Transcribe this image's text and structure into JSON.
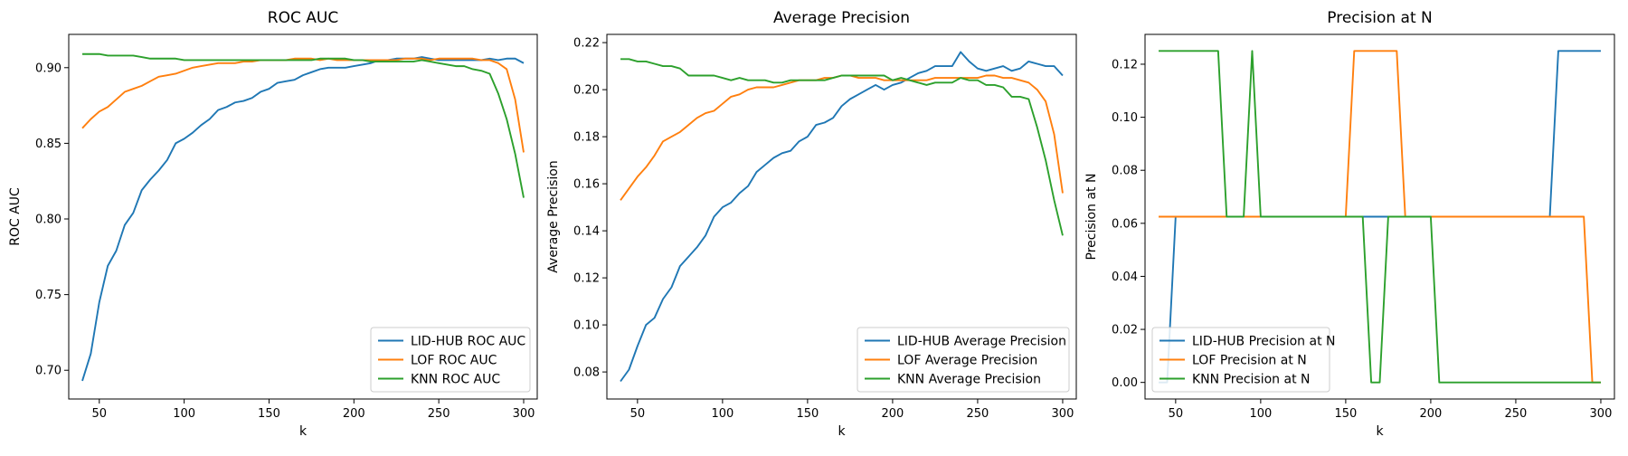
{
  "chart_data": [
    {
      "type": "line",
      "title": "ROC AUC",
      "xlabel": "k",
      "ylabel": "ROC AUC",
      "xlim": [
        32,
        308
      ],
      "ylim": [
        0.681,
        0.922
      ],
      "xticks": [
        50,
        100,
        150,
        200,
        250,
        300
      ],
      "yticks": [
        0.7,
        0.75,
        0.8,
        0.85,
        0.9
      ],
      "ytick_labels": [
        "0.70",
        "0.75",
        "0.80",
        "0.85",
        "0.90"
      ],
      "legend_position": "lower-right",
      "grid": false,
      "x": [
        40,
        45,
        50,
        55,
        60,
        65,
        70,
        75,
        80,
        85,
        90,
        95,
        100,
        105,
        110,
        115,
        120,
        125,
        130,
        135,
        140,
        145,
        150,
        155,
        160,
        165,
        170,
        175,
        180,
        185,
        190,
        195,
        200,
        205,
        210,
        215,
        220,
        225,
        230,
        235,
        240,
        245,
        250,
        255,
        260,
        265,
        270,
        275,
        280,
        285,
        290,
        295,
        300
      ],
      "series": [
        {
          "name": "LID-HUB ROC AUC",
          "color": "#1f77b4",
          "values": [
            0.693,
            0.711,
            0.745,
            0.769,
            0.779,
            0.796,
            0.804,
            0.819,
            0.826,
            0.832,
            0.839,
            0.85,
            0.853,
            0.857,
            0.862,
            0.866,
            0.872,
            0.874,
            0.877,
            0.878,
            0.88,
            0.884,
            0.886,
            0.89,
            0.891,
            0.892,
            0.895,
            0.897,
            0.899,
            0.9,
            0.9,
            0.9,
            0.901,
            0.902,
            0.903,
            0.905,
            0.905,
            0.906,
            0.906,
            0.906,
            0.907,
            0.906,
            0.905,
            0.905,
            0.905,
            0.905,
            0.905,
            0.905,
            0.906,
            0.905,
            0.906,
            0.906,
            0.903
          ]
        },
        {
          "name": "LOF ROC AUC",
          "color": "#ff7f0e",
          "values": [
            0.86,
            0.866,
            0.871,
            0.874,
            0.879,
            0.884,
            0.886,
            0.888,
            0.891,
            0.894,
            0.895,
            0.896,
            0.898,
            0.9,
            0.901,
            0.902,
            0.903,
            0.903,
            0.903,
            0.904,
            0.904,
            0.905,
            0.905,
            0.905,
            0.905,
            0.906,
            0.906,
            0.906,
            0.905,
            0.906,
            0.905,
            0.905,
            0.905,
            0.905,
            0.905,
            0.905,
            0.905,
            0.905,
            0.906,
            0.906,
            0.906,
            0.905,
            0.906,
            0.906,
            0.906,
            0.906,
            0.906,
            0.905,
            0.905,
            0.903,
            0.899,
            0.879,
            0.844
          ]
        },
        {
          "name": "KNN ROC AUC",
          "color": "#2ca02c",
          "values": [
            0.909,
            0.909,
            0.909,
            0.908,
            0.908,
            0.908,
            0.908,
            0.907,
            0.906,
            0.906,
            0.906,
            0.906,
            0.905,
            0.905,
            0.905,
            0.905,
            0.905,
            0.905,
            0.905,
            0.905,
            0.905,
            0.905,
            0.905,
            0.905,
            0.905,
            0.905,
            0.905,
            0.905,
            0.906,
            0.906,
            0.906,
            0.906,
            0.905,
            0.905,
            0.904,
            0.904,
            0.904,
            0.904,
            0.904,
            0.904,
            0.905,
            0.904,
            0.903,
            0.902,
            0.901,
            0.901,
            0.899,
            0.898,
            0.896,
            0.883,
            0.866,
            0.843,
            0.814
          ]
        }
      ]
    },
    {
      "type": "line",
      "title": "Average Precision",
      "xlabel": "k",
      "ylabel": "Average Precision",
      "xlim": [
        32,
        308
      ],
      "ylim": [
        0.0685,
        0.2235
      ],
      "xticks": [
        50,
        100,
        150,
        200,
        250,
        300
      ],
      "yticks": [
        0.08,
        0.1,
        0.12,
        0.14,
        0.16,
        0.18,
        0.2,
        0.22
      ],
      "ytick_labels": [
        "0.08",
        "0.10",
        "0.12",
        "0.14",
        "0.16",
        "0.18",
        "0.20",
        "0.22"
      ],
      "legend_position": "lower-right",
      "grid": false,
      "x": [
        40,
        45,
        50,
        55,
        60,
        65,
        70,
        75,
        80,
        85,
        90,
        95,
        100,
        105,
        110,
        115,
        120,
        125,
        130,
        135,
        140,
        145,
        150,
        155,
        160,
        165,
        170,
        175,
        180,
        185,
        190,
        195,
        200,
        205,
        210,
        215,
        220,
        225,
        230,
        235,
        240,
        245,
        250,
        255,
        260,
        265,
        270,
        275,
        280,
        285,
        290,
        295,
        300
      ],
      "series": [
        {
          "name": "LID-HUB Average Precision",
          "color": "#1f77b4",
          "values": [
            0.076,
            0.081,
            0.091,
            0.1,
            0.103,
            0.111,
            0.116,
            0.125,
            0.129,
            0.133,
            0.138,
            0.146,
            0.15,
            0.152,
            0.156,
            0.159,
            0.165,
            0.168,
            0.171,
            0.173,
            0.174,
            0.178,
            0.18,
            0.185,
            0.186,
            0.188,
            0.193,
            0.196,
            0.198,
            0.2,
            0.202,
            0.2,
            0.202,
            0.203,
            0.205,
            0.207,
            0.208,
            0.21,
            0.21,
            0.21,
            0.216,
            0.212,
            0.209,
            0.208,
            0.209,
            0.21,
            0.208,
            0.209,
            0.212,
            0.211,
            0.21,
            0.21,
            0.206
          ]
        },
        {
          "name": "LOF Average Precision",
          "color": "#ff7f0e",
          "values": [
            0.153,
            0.158,
            0.163,
            0.167,
            0.172,
            0.178,
            0.18,
            0.182,
            0.185,
            0.188,
            0.19,
            0.191,
            0.194,
            0.197,
            0.198,
            0.2,
            0.201,
            0.201,
            0.201,
            0.202,
            0.203,
            0.204,
            0.204,
            0.204,
            0.205,
            0.205,
            0.206,
            0.206,
            0.205,
            0.205,
            0.205,
            0.204,
            0.204,
            0.204,
            0.204,
            0.204,
            0.204,
            0.205,
            0.205,
            0.205,
            0.205,
            0.205,
            0.205,
            0.206,
            0.206,
            0.205,
            0.205,
            0.204,
            0.203,
            0.2,
            0.195,
            0.181,
            0.156
          ]
        },
        {
          "name": "KNN Average Precision",
          "color": "#2ca02c",
          "values": [
            0.213,
            0.213,
            0.212,
            0.212,
            0.211,
            0.21,
            0.21,
            0.209,
            0.206,
            0.206,
            0.206,
            0.206,
            0.205,
            0.204,
            0.205,
            0.204,
            0.204,
            0.204,
            0.203,
            0.203,
            0.204,
            0.204,
            0.204,
            0.204,
            0.204,
            0.205,
            0.206,
            0.206,
            0.206,
            0.206,
            0.206,
            0.206,
            0.204,
            0.205,
            0.204,
            0.203,
            0.202,
            0.203,
            0.203,
            0.203,
            0.205,
            0.204,
            0.204,
            0.202,
            0.202,
            0.201,
            0.197,
            0.197,
            0.196,
            0.184,
            0.17,
            0.153,
            0.138
          ]
        }
      ]
    },
    {
      "type": "line",
      "title": "Precision at N",
      "xlabel": "k",
      "ylabel": "Precision at N",
      "xlim": [
        32,
        308
      ],
      "ylim": [
        -0.00625,
        0.13125
      ],
      "xticks": [
        50,
        100,
        150,
        200,
        250,
        300
      ],
      "yticks": [
        0.0,
        0.02,
        0.04,
        0.06,
        0.08,
        0.1,
        0.12
      ],
      "ytick_labels": [
        "0.00",
        "0.02",
        "0.04",
        "0.06",
        "0.08",
        "0.10",
        "0.12"
      ],
      "legend_position": "lower-left",
      "grid": false,
      "series": [
        {
          "name": "LID-HUB Precision at N",
          "color": "#1f77b4",
          "x": [
            40,
            45,
            50,
            270,
            275,
            300
          ],
          "values": [
            0,
            0,
            0.0625,
            0.0625,
            0.125,
            0.125
          ]
        },
        {
          "name": "LOF Precision at N",
          "color": "#ff7f0e",
          "x": [
            40,
            150,
            155,
            180,
            185,
            290,
            295,
            300
          ],
          "values": [
            0.0625,
            0.0625,
            0.125,
            0.125,
            0.0625,
            0.0625,
            0,
            0
          ]
        },
        {
          "name": "KNN Precision at N",
          "color": "#2ca02c",
          "x": [
            40,
            75,
            80,
            90,
            95,
            100,
            160,
            165,
            170,
            175,
            200,
            205,
            300
          ],
          "values": [
            0.125,
            0.125,
            0.0625,
            0.0625,
            0.125,
            0.0625,
            0.0625,
            0,
            0,
            0.0625,
            0.0625,
            0,
            0
          ]
        }
      ]
    }
  ]
}
